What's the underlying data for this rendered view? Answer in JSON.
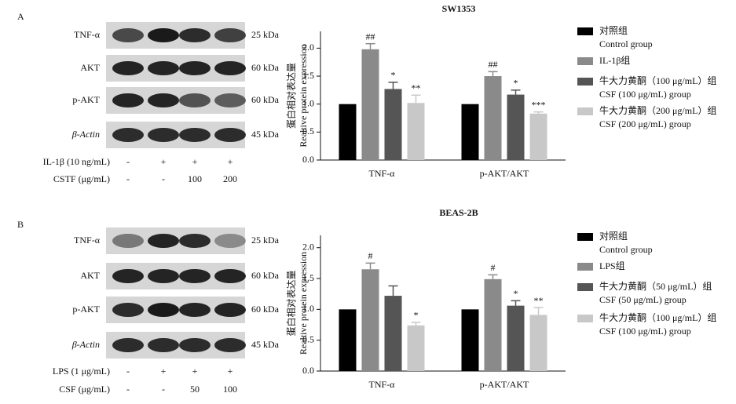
{
  "panels": [
    {
      "label": "A",
      "blot_rows": [
        {
          "name": "TNF-α",
          "size": "25 kDa"
        },
        {
          "name": "AKT",
          "size": "60 kDa"
        },
        {
          "name": "p-AKT",
          "size": "60 kDa"
        },
        {
          "name": "β-Actin",
          "size": "45 kDa"
        }
      ],
      "treatments": [
        {
          "label": "IL-1β (10 ng/mL)",
          "values": [
            "-",
            "+",
            "+",
            "+"
          ]
        },
        {
          "label": "CSTF (μg/mL)",
          "values": [
            "-",
            "-",
            "100",
            "200"
          ]
        }
      ]
    },
    {
      "label": "B",
      "blot_rows": [
        {
          "name": "TNF-α",
          "size": "25 kDa"
        },
        {
          "name": "AKT",
          "size": "60 kDa"
        },
        {
          "name": "p-AKT",
          "size": "60 kDa"
        },
        {
          "name": "β-Actin",
          "size": "45 kDa"
        }
      ],
      "treatments": [
        {
          "label": "LPS (1 μg/mL)",
          "values": [
            "-",
            "+",
            "+",
            "+"
          ]
        },
        {
          "label": "CSF (μg/mL)",
          "values": [
            "-",
            "-",
            "50",
            "100"
          ]
        }
      ]
    }
  ],
  "chart_data": [
    {
      "type": "bar",
      "title": "SW1353",
      "ylabel": [
        "蛋白相对表达量",
        "Realtive protein expression"
      ],
      "categories": [
        "TNF-α",
        "p-AKT/AKT"
      ],
      "ylim": [
        0,
        2.3
      ],
      "yticks": [
        {
          "value": 0,
          "label": "0.0"
        },
        0.5,
        {
          "value": 1,
          "label": "1.0"
        },
        1.5,
        {
          "value": 2,
          "label": "2.0"
        }
      ],
      "series": [
        {
          "name": "对照组",
          "name_en": "Control group",
          "color": "#000000",
          "values": [
            1,
            1
          ]
        },
        {
          "name": "IL-1β组",
          "color": "#8a8a8a",
          "values": [
            1.98,
            1.5
          ],
          "errors": [
            0.1,
            0.08
          ],
          "annotations": [
            "##",
            "##"
          ]
        },
        {
          "name": "牛大力黄酮（100 μg/mL）组",
          "name_en": "CSF (100 μg/mL) group",
          "color": "#555555",
          "values": [
            1.27,
            1.17
          ],
          "errors": [
            0.12,
            0.08
          ],
          "annotations": [
            "*",
            "*"
          ]
        },
        {
          "name": "牛大力黄酮（200 μg/mL）组",
          "name_en": "CSF (200 μg/mL) group",
          "color": "#c8c8c8",
          "values": [
            1.02,
            0.83
          ],
          "errors": [
            0.14,
            0.03
          ],
          "annotations": [
            "**",
            "***"
          ]
        }
      ]
    },
    {
      "type": "bar",
      "title": "BEAS-2B",
      "ylabel": [
        "蛋白相对表达量",
        "Realtive protein expression"
      ],
      "categories": [
        "TNF-α",
        "p-AKT/AKT"
      ],
      "ylim": [
        0,
        2.2
      ],
      "yticks": [
        {
          "value": 0,
          "label": "0.0"
        },
        0.5,
        {
          "value": 1,
          "label": "1.0"
        },
        1.5,
        {
          "value": 2,
          "label": "2.0"
        }
      ],
      "series": [
        {
          "name": "对照组",
          "name_en": "Control group",
          "color": "#000000",
          "values": [
            1,
            1
          ]
        },
        {
          "name": "LPS组",
          "color": "#8a8a8a",
          "values": [
            1.65,
            1.49
          ],
          "errors": [
            0.1,
            0.07
          ],
          "annotations": [
            "#",
            "#"
          ]
        },
        {
          "name": "牛大力黄酮（50 μg/mL）组",
          "name_en": "CSF (50 μg/mL) group",
          "color": "#555555",
          "values": [
            1.22,
            1.06
          ],
          "errors": [
            0.16,
            0.08
          ],
          "annotations": [
            null,
            "*"
          ]
        },
        {
          "name": "牛大力黄酮（100 μg/mL）组",
          "name_en": "CSF (100 μg/mL) group",
          "color": "#c8c8c8",
          "values": [
            0.74,
            0.91
          ],
          "errors": [
            0.05,
            0.12
          ],
          "annotations": [
            "*",
            "**"
          ]
        }
      ]
    }
  ]
}
